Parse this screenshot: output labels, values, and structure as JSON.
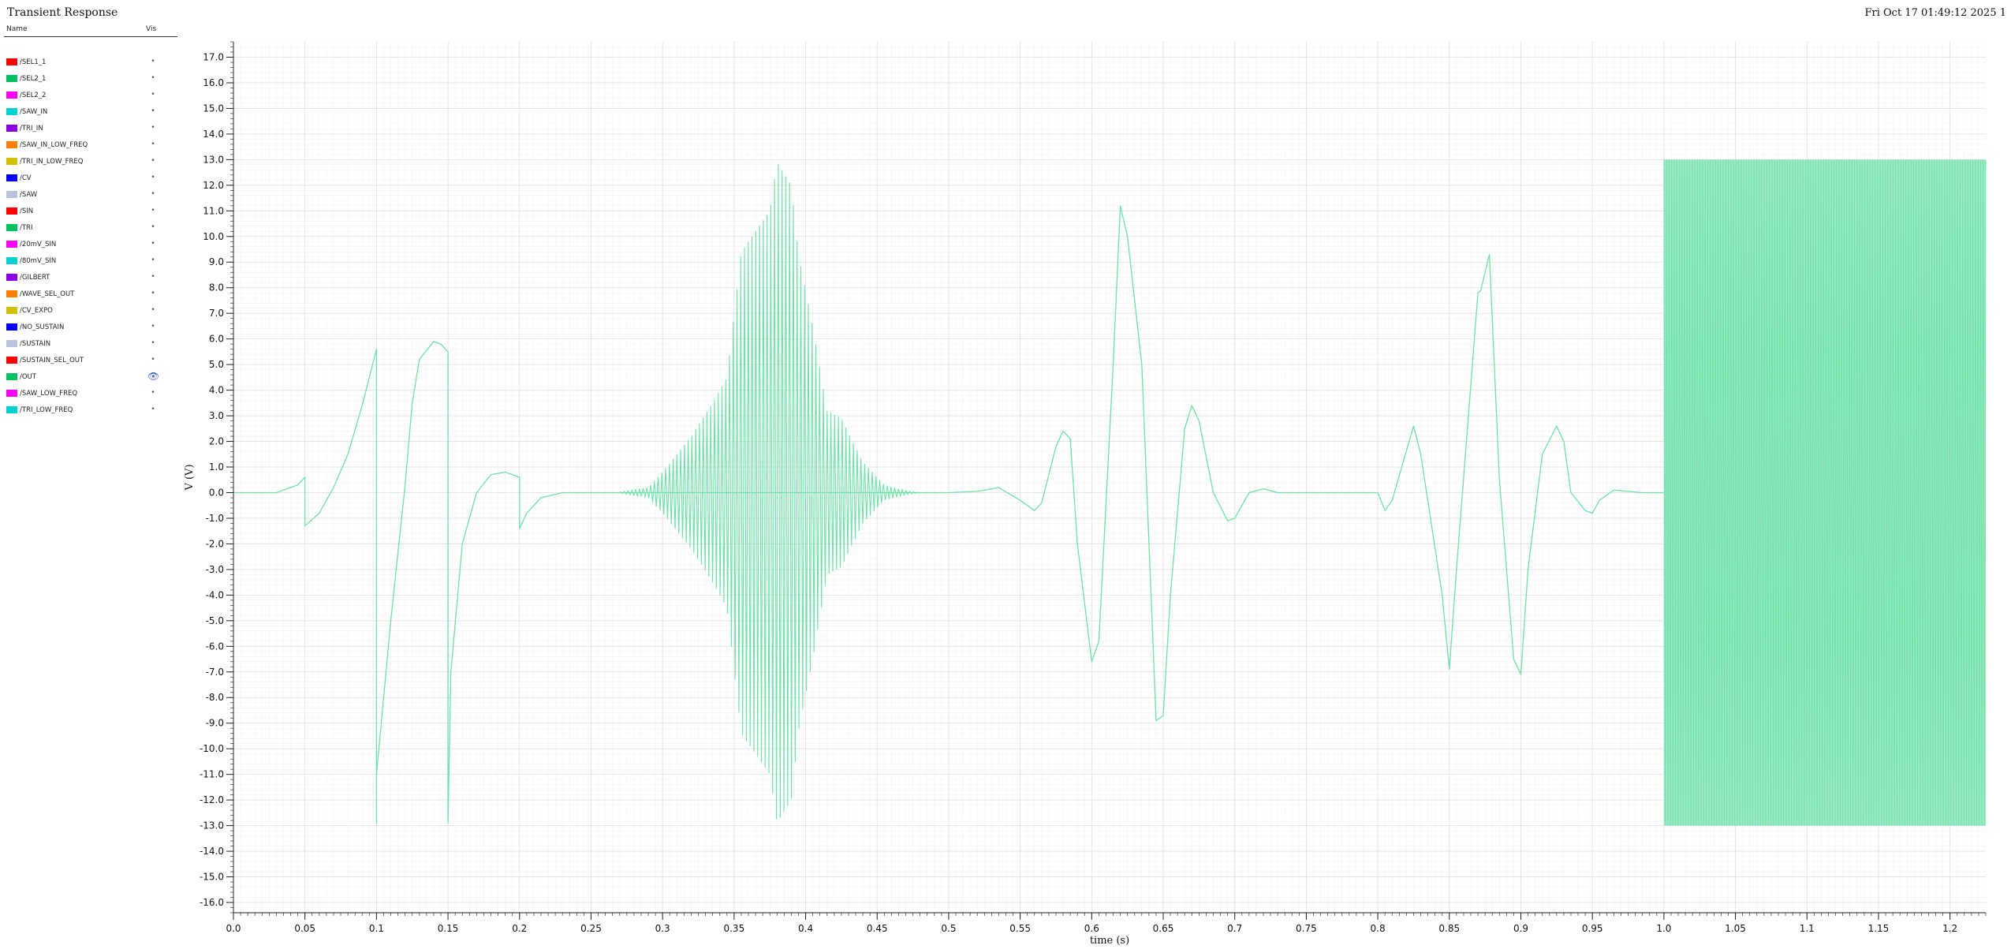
{
  "window": {
    "title": "Transient Response",
    "timestamp": "Fri Oct 17 01:49:12 2025  1"
  },
  "legend": {
    "header_name": "Name",
    "header_vis": "Vis",
    "items": [
      {
        "label": "/SEL1_1",
        "color": "#ff0000",
        "visible": false
      },
      {
        "label": "/SEL2_1",
        "color": "#00c060",
        "visible": false
      },
      {
        "label": "/SEL2_2",
        "color": "#ff00ff",
        "visible": false
      },
      {
        "label": "/SAW_IN",
        "color": "#00d0d0",
        "visible": false
      },
      {
        "label": "/TRI_IN",
        "color": "#8a00e0",
        "visible": false
      },
      {
        "label": "/SAW_IN_LOW_FREQ",
        "color": "#ff8000",
        "visible": false
      },
      {
        "label": "/TRI_IN_LOW_FREQ",
        "color": "#d0c000",
        "visible": false
      },
      {
        "label": "/CV",
        "color": "#0000ff",
        "visible": false
      },
      {
        "label": "/SAW",
        "color": "#b8c4dc",
        "visible": false
      },
      {
        "label": "/SIN",
        "color": "#ff0000",
        "visible": false
      },
      {
        "label": "/TRI",
        "color": "#00c060",
        "visible": false
      },
      {
        "label": "/20mV_SIN",
        "color": "#ff00ff",
        "visible": false
      },
      {
        "label": "/80mV_SIN",
        "color": "#00d0d0",
        "visible": false
      },
      {
        "label": "/GILBERT",
        "color": "#8a00e0",
        "visible": false
      },
      {
        "label": "/WAVE_SEL_OUT",
        "color": "#ff8000",
        "visible": false
      },
      {
        "label": "/CV_EXPO",
        "color": "#d0c000",
        "visible": false
      },
      {
        "label": "/NO_SUSTAIN",
        "color": "#0000ff",
        "visible": false
      },
      {
        "label": "/SUSTAIN",
        "color": "#b8c4dc",
        "visible": false
      },
      {
        "label": "/SUSTAIN_SEL_OUT",
        "color": "#ff0000",
        "visible": false
      },
      {
        "label": "/OUT",
        "color": "#00c060",
        "visible": true
      },
      {
        "label": "/SAW_LOW_FREQ",
        "color": "#ff00ff",
        "visible": false
      },
      {
        "label": "/TRI_LOW_FREQ",
        "color": "#00d0d0",
        "visible": false
      }
    ]
  },
  "chart_data": {
    "type": "line",
    "title": "Transient Response",
    "xlabel": "time (s)",
    "ylabel": "V (V)",
    "xlim": [
      0.0,
      1.225
    ],
    "ylim": [
      -16.4,
      17.6
    ],
    "grid": true,
    "x_ticks": [
      0.0,
      0.05,
      0.1,
      0.15,
      0.2,
      0.25,
      0.3,
      0.35,
      0.4,
      0.45,
      0.5,
      0.55,
      0.6,
      0.65,
      0.7,
      0.75,
      0.8,
      0.85,
      0.9,
      0.95,
      1.0,
      1.05,
      1.1,
      1.15,
      1.2
    ],
    "x_tick_labels": [
      "0.0",
      "0.05",
      "0.1",
      "0.15",
      "0.2",
      "0.25",
      "0.3",
      "0.35",
      "0.4",
      "0.45",
      "0.5",
      "0.55",
      "0.6",
      "0.65",
      "0.7",
      "0.75",
      "0.8",
      "0.85",
      "0.9",
      "0.95",
      "1.0",
      "1.05",
      "1.1",
      "1.15",
      "1.2"
    ],
    "y_ticks": [
      17,
      16,
      15,
      14,
      13,
      12,
      11,
      10,
      9,
      8,
      7,
      6,
      5,
      4,
      3,
      2,
      1,
      0,
      -1,
      -2,
      -3,
      -4,
      -5,
      -6,
      -7,
      -8,
      -9,
      -10,
      -11,
      -12,
      -13,
      -14,
      -15,
      -16
    ],
    "y_tick_labels": [
      "17.0",
      "16.0",
      "15.0",
      "14.0",
      "13.0",
      "12.0",
      "11.0",
      "10.0",
      "9.0",
      "8.0",
      "7.0",
      "6.0",
      "5.0",
      "4.0",
      "3.0",
      "2.0",
      "1.0",
      "0.0",
      "-1.0",
      "-2.0",
      "-3.0",
      "-4.0",
      "-5.0",
      "-6.0",
      "-7.0",
      "-8.0",
      "-9.0",
      "-10.0",
      "-11.0",
      "-12.0",
      "-13.0",
      "-14.0",
      "-15.0",
      "-16.0"
    ],
    "series": [
      {
        "name": "/OUT",
        "color": "#6fe0a8",
        "segments": [
          {
            "kind": "polyline",
            "points": [
              [
                0.0,
                0.0
              ],
              [
                0.03,
                0.0
              ],
              [
                0.045,
                0.3
              ],
              [
                0.05,
                0.6
              ],
              [
                0.05,
                -1.3
              ],
              [
                0.06,
                -0.8
              ],
              [
                0.07,
                0.2
              ],
              [
                0.08,
                1.5
              ],
              [
                0.09,
                3.4
              ],
              [
                0.1,
                5.6
              ],
              [
                0.1,
                -12.9
              ],
              [
                0.1,
                -11.0
              ],
              [
                0.11,
                -5.0
              ],
              [
                0.12,
                0.3
              ],
              [
                0.125,
                3.5
              ],
              [
                0.13,
                5.2
              ],
              [
                0.14,
                5.9
              ],
              [
                0.145,
                5.8
              ],
              [
                0.15,
                5.5
              ],
              [
                0.15,
                -12.9
              ],
              [
                0.152,
                -7.0
              ],
              [
                0.16,
                -2.0
              ],
              [
                0.17,
                0.0
              ],
              [
                0.18,
                0.7
              ],
              [
                0.19,
                0.8
              ],
              [
                0.2,
                0.6
              ],
              [
                0.2,
                -1.4
              ],
              [
                0.205,
                -0.8
              ],
              [
                0.215,
                -0.2
              ],
              [
                0.23,
                0.0
              ],
              [
                0.5,
                0.0
              ],
              [
                0.52,
                0.05
              ],
              [
                0.535,
                0.2
              ],
              [
                0.55,
                -0.3
              ],
              [
                0.56,
                -0.7
              ],
              [
                0.565,
                -0.4
              ],
              [
                0.575,
                1.8
              ],
              [
                0.58,
                2.4
              ],
              [
                0.585,
                2.1
              ],
              [
                0.59,
                -2.0
              ],
              [
                0.6,
                -6.6
              ],
              [
                0.605,
                -5.8
              ],
              [
                0.615,
                5.0
              ],
              [
                0.62,
                11.2
              ],
              [
                0.625,
                10.0
              ],
              [
                0.635,
                5.0
              ],
              [
                0.645,
                -8.9
              ],
              [
                0.65,
                -8.7
              ],
              [
                0.655,
                -4.0
              ],
              [
                0.665,
                2.5
              ],
              [
                0.67,
                3.4
              ],
              [
                0.675,
                2.8
              ],
              [
                0.685,
                0.0
              ],
              [
                0.695,
                -1.1
              ],
              [
                0.7,
                -1.0
              ],
              [
                0.71,
                0.0
              ],
              [
                0.72,
                0.15
              ],
              [
                0.73,
                0.0
              ],
              [
                0.8,
                0.0
              ],
              [
                0.805,
                -0.7
              ],
              [
                0.81,
                -0.3
              ],
              [
                0.825,
                2.6
              ],
              [
                0.83,
                1.5
              ],
              [
                0.845,
                -4.0
              ],
              [
                0.85,
                -6.9
              ],
              [
                0.855,
                -3.0
              ],
              [
                0.87,
                7.8
              ],
              [
                0.872,
                7.9
              ],
              [
                0.878,
                9.3
              ],
              [
                0.885,
                0.5
              ],
              [
                0.895,
                -6.5
              ],
              [
                0.9,
                -7.1
              ],
              [
                0.905,
                -3.0
              ],
              [
                0.915,
                1.5
              ],
              [
                0.925,
                2.6
              ],
              [
                0.93,
                2.0
              ],
              [
                0.935,
                0.0
              ],
              [
                0.945,
                -0.7
              ],
              [
                0.95,
                -0.8
              ],
              [
                0.955,
                -0.3
              ],
              [
                0.965,
                0.1
              ],
              [
                0.985,
                0.0
              ],
              [
                1.0,
                0.0
              ]
            ]
          },
          {
            "kind": "burst",
            "t_start": 0.27,
            "t_end": 0.48,
            "cycles": 80,
            "envelope": [
              [
                0.27,
                0.02
              ],
              [
                0.29,
                0.2
              ],
              [
                0.3,
                0.8
              ],
              [
                0.32,
                2.2
              ],
              [
                0.335,
                3.5
              ],
              [
                0.345,
                4.5
              ],
              [
                0.355,
                9.4
              ],
              [
                0.365,
                10.2
              ],
              [
                0.375,
                11.0
              ],
              [
                0.38,
                12.9
              ],
              [
                0.39,
                12.0
              ],
              [
                0.395,
                9.3
              ],
              [
                0.405,
                6.5
              ],
              [
                0.415,
                3.2
              ],
              [
                0.425,
                2.9
              ],
              [
                0.44,
                1.2
              ],
              [
                0.455,
                0.3
              ],
              [
                0.47,
                0.08
              ],
              [
                0.48,
                0.0
              ]
            ]
          },
          {
            "kind": "block",
            "t_start": 1.0,
            "t_end": 1.225,
            "ymin": -13.0,
            "ymax": 13.0,
            "cycles": 250
          }
        ]
      }
    ]
  }
}
